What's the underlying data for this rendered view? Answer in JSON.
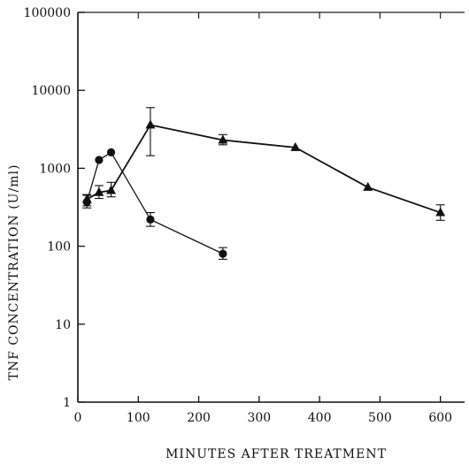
{
  "chart_data": {
    "type": "line",
    "xlabel": "MINUTES AFTER TREATMENT",
    "ylabel": "TNF CONCENTRATION (U/ml)",
    "xlim": [
      0,
      640
    ],
    "ylim": [
      1,
      100000
    ],
    "yscale": "log",
    "xticks": [
      0,
      100,
      200,
      300,
      400,
      500,
      600
    ],
    "xtick_labels": [
      "0",
      "100",
      "200",
      "300",
      "400",
      "500",
      "600"
    ],
    "yticks": [
      1,
      10,
      100,
      1000,
      10000,
      100000
    ],
    "ytick_labels": [
      "1",
      "10",
      "100",
      "1000",
      "10000",
      "100000"
    ],
    "grid": false,
    "series": [
      {
        "marker": "circle",
        "color": "#111111",
        "x": [
          15,
          35,
          55,
          120,
          240
        ],
        "y": [
          370,
          1280,
          1600,
          220,
          80
        ],
        "err_low": [
          310,
          null,
          null,
          180,
          68
        ],
        "err_high": [
          460,
          null,
          null,
          270,
          96
        ]
      },
      {
        "marker": "triangle",
        "color": "#111111",
        "x": [
          15,
          35,
          55,
          120,
          240,
          360,
          480,
          600
        ],
        "y": [
          400,
          490,
          520,
          3600,
          2300,
          1850,
          570,
          270
        ],
        "err_low": [
          330,
          410,
          430,
          1450,
          2000,
          null,
          null,
          215
        ],
        "err_high": [
          450,
          600,
          660,
          6000,
          2700,
          null,
          null,
          340
        ]
      }
    ]
  }
}
